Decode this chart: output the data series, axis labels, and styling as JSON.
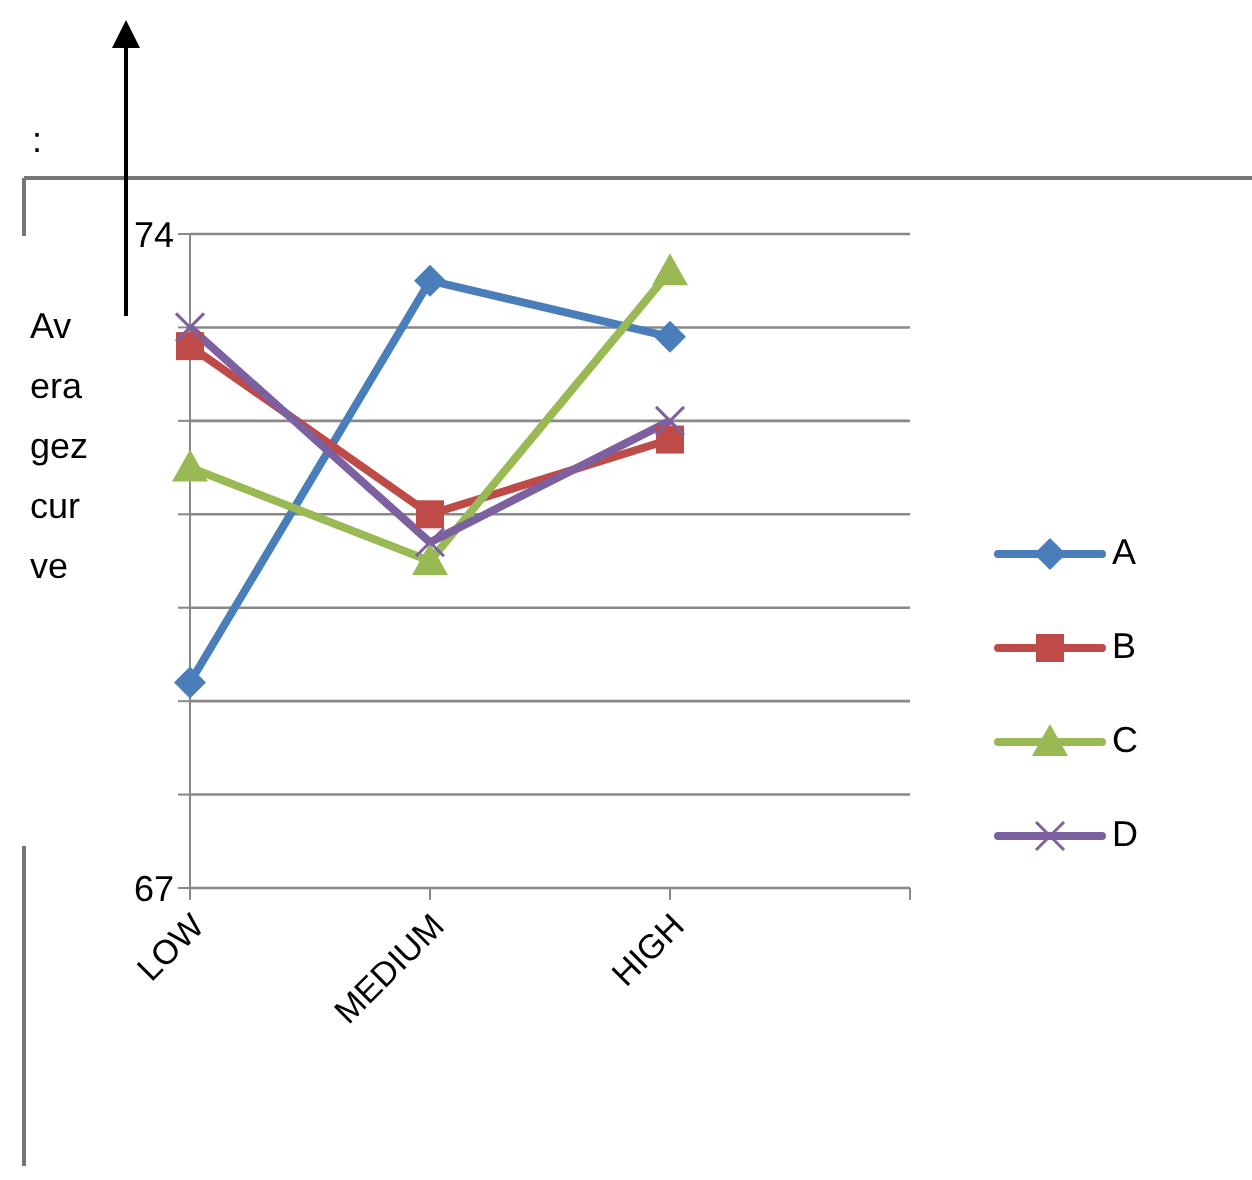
{
  "chart_data": {
    "type": "line",
    "ylabel": "Averagez curve",
    "annotations": [
      ":"
    ],
    "categories": [
      "LOW",
      "MEDIUM",
      "HIGH",
      null
    ],
    "series": [
      {
        "name": "A",
        "color": "#4a7ebb",
        "marker": "diamond",
        "values": [
          69.2,
          73.5,
          72.9,
          null
        ]
      },
      {
        "name": "B",
        "color": "#be4b48",
        "marker": "square",
        "values": [
          72.8,
          71.0,
          71.8,
          null
        ]
      },
      {
        "name": "C",
        "color": "#98b954",
        "marker": "triangle",
        "values": [
          71.5,
          70.5,
          73.6,
          null
        ]
      },
      {
        "name": "D",
        "color": "#7d60a0",
        "marker": "cross",
        "values": [
          73.0,
          70.7,
          72.0,
          null
        ]
      }
    ],
    "ylim": [
      67,
      74
    ],
    "yticks": [
      67,
      {
        "value": 68,
        "label": null
      },
      {
        "value": 69,
        "label": null
      },
      {
        "value": 70,
        "label": null
      },
      {
        "value": 71,
        "label": null
      },
      {
        "value": 72,
        "label": null
      },
      {
        "value": 73,
        "label": null
      },
      74
    ],
    "grid": "y",
    "legend": "right"
  }
}
